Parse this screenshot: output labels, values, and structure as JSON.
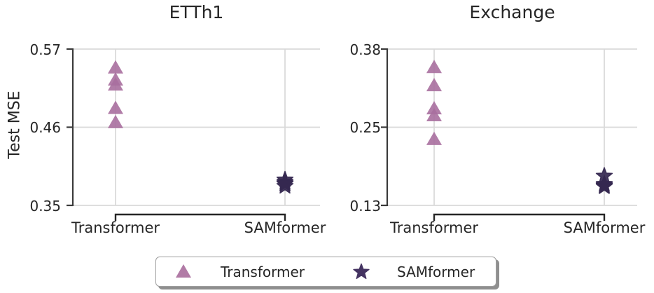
{
  "figure": {
    "ylabel": "Test MSE",
    "background": "#ffffff",
    "text_color": "#262626",
    "grid_color": "#d9d9d9",
    "axis_color": "#3a3a3a",
    "bracket_color": "#262626"
  },
  "legend": {
    "items": [
      {
        "label": "Transformer",
        "marker": "triangle-icon",
        "color": "#b17ba6"
      },
      {
        "label": "SAMformer",
        "marker": "star-icon",
        "color": "#453462"
      }
    ]
  },
  "chart_data": [
    {
      "type": "scatter",
      "title": "ETTh1",
      "ylabel": "Test MSE",
      "categories": [
        "Transformer",
        "SAMformer"
      ],
      "ylim": [
        0.35,
        0.57
      ],
      "yticks": [
        {
          "value": 0.35,
          "label": "0.35"
        },
        {
          "value": 0.46,
          "label": "0.46"
        },
        {
          "value": 0.57,
          "label": "0.57"
        }
      ],
      "grid": true,
      "series": [
        {
          "name": "Transformer",
          "marker": "triangle",
          "color": "#a86f9e",
          "values": [
            0.543,
            0.526,
            0.519,
            0.486,
            0.466
          ]
        },
        {
          "name": "SAMformer",
          "marker": "star",
          "color": "#352850",
          "values": [
            0.386,
            0.383,
            0.381,
            0.38,
            0.377
          ]
        }
      ]
    },
    {
      "type": "scatter",
      "title": "Exchange",
      "categories": [
        "Transformer",
        "SAMformer"
      ],
      "ylim": [
        0.125,
        0.375
      ],
      "yticks": [
        {
          "value": 0.125,
          "label": "0.13"
        },
        {
          "value": 0.25,
          "label": "0.25"
        },
        {
          "value": 0.375,
          "label": "0.38"
        }
      ],
      "grid": true,
      "series": [
        {
          "name": "Transformer",
          "marker": "triangle",
          "color": "#a86f9e",
          "values": [
            0.345,
            0.316,
            0.279,
            0.268,
            0.23
          ]
        },
        {
          "name": "SAMformer",
          "marker": "star",
          "color": "#352850",
          "values": [
            0.172,
            0.159,
            0.157,
            0.156,
            0.155
          ]
        }
      ]
    }
  ]
}
